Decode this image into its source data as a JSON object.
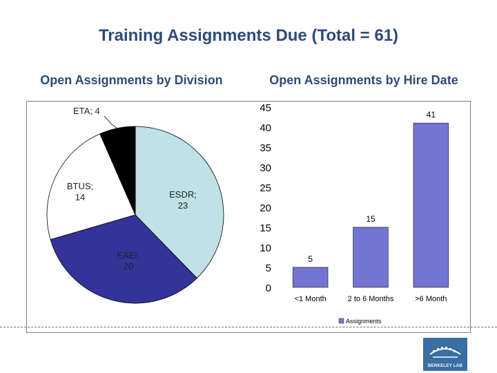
{
  "title": "Training Assignments Due (Total = 61)",
  "chart_data": [
    {
      "type": "pie",
      "title": "Open Assignments by Division",
      "slices": [
        {
          "label": "ESDR",
          "value": 23,
          "text": "ESDR;\n23",
          "color": "#bfe2e6"
        },
        {
          "label": "EAEI",
          "value": 20,
          "text": "EAEI;\n20",
          "color": "#33339a"
        },
        {
          "label": "BTUS",
          "value": 14,
          "text": "BTUS;\n14",
          "color": "#ffffff"
        },
        {
          "label": "ETA",
          "value": 4,
          "text": "ETA; 4",
          "color": "#000000"
        }
      ]
    },
    {
      "type": "bar",
      "title": "Open Assignments by Hire Date",
      "categories": [
        "<1 Month",
        "2 to 6 Months",
        ">6 Month"
      ],
      "series": [
        {
          "name": "Assignments",
          "values": [
            5,
            15,
            41
          ],
          "color": "#7474d4"
        }
      ],
      "ylim": [
        0,
        45
      ],
      "yticks": [
        0,
        5,
        10,
        15,
        20,
        25,
        30,
        35,
        40,
        45
      ],
      "legend": "bottom"
    }
  ],
  "logo": {
    "text": "BERKELEY LAB",
    "color": "#3a6ea5"
  }
}
